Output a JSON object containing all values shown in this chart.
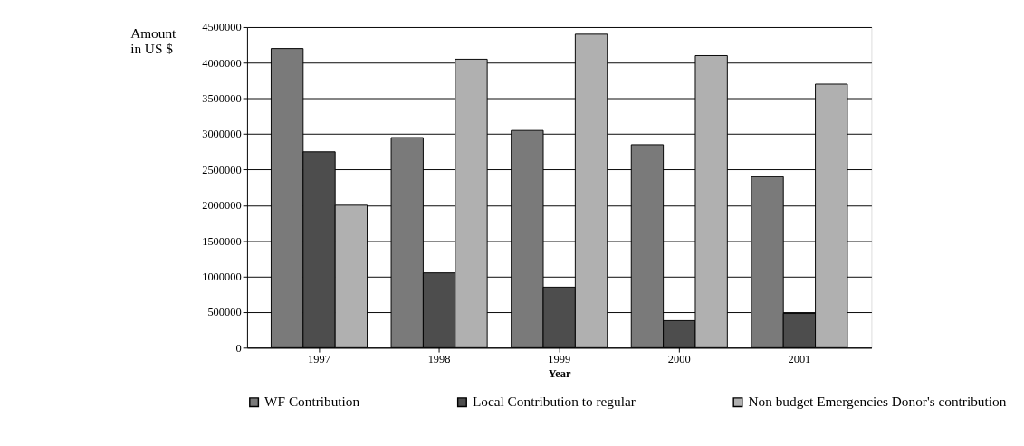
{
  "chart_data": {
    "type": "bar",
    "xlabel": "Year",
    "ylabel": "Amount in US $",
    "categories": [
      "1997",
      "1998",
      "1999",
      "2000",
      "2001"
    ],
    "series": [
      {
        "name": "WF Contribution",
        "color": "#7a7a7a",
        "values": [
          4200000,
          2950000,
          3050000,
          2850000,
          2400000
        ]
      },
      {
        "name": "Local Contribution to regular",
        "color": "#4d4d4d",
        "values": [
          2750000,
          1050000,
          850000,
          380000,
          480000
        ]
      },
      {
        "name": "Non budget Emergencies Donor's contribution",
        "color": "#b0b0b0",
        "values": [
          2000000,
          4050000,
          4400000,
          4100000,
          3700000
        ]
      }
    ],
    "ylim": [
      0,
      4500000
    ],
    "yticks": [
      0,
      500000,
      1000000,
      1500000,
      2000000,
      2500000,
      3000000,
      3500000,
      4000000,
      4500000
    ],
    "grid": "y",
    "legend": "bottom"
  }
}
